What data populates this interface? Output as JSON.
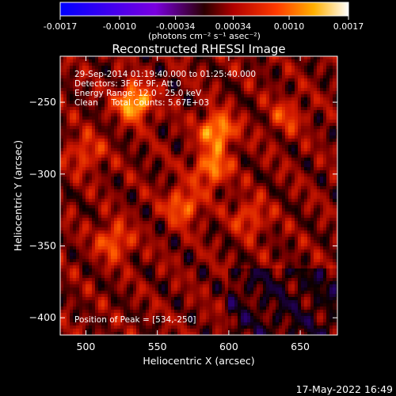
{
  "chart_data": {
    "type": "heatmap",
    "title": "Reconstructed RHESSI Image",
    "xlabel": "Heliocentric X (arcsec)",
    "ylabel": "Heliocentric Y (arcsec)",
    "xlim": [
      482,
      676
    ],
    "ylim": [
      -412,
      -218
    ],
    "xticks": [
      "500",
      "550",
      "600",
      "650"
    ],
    "xtick_values": [
      500,
      550,
      600,
      650
    ],
    "yticks": [
      "-250",
      "-300",
      "-350",
      "-400"
    ],
    "ytick_values": [
      -250,
      -300,
      -350,
      -400
    ],
    "info_lines": [
      "29-Sep-2014 01:19:40.000 to 01:25:40.000",
      "Detectors: 3F 6F 9F, Att 0",
      "Energy Range: 12.0 - 25.0 keV",
      "Clean     Total Counts: 5.67E+03"
    ],
    "peak_label": "Position of Peak = [534,-250]",
    "peak": [
      534,
      -250
    ],
    "hotspots": [
      {
        "x": 534,
        "y": -250,
        "v": 1.0
      },
      {
        "x": 592,
        "y": -270,
        "v": 0.9
      },
      {
        "x": 588,
        "y": -296,
        "v": 0.75
      },
      {
        "x": 568,
        "y": -322,
        "v": 0.65
      },
      {
        "x": 520,
        "y": -347,
        "v": 0.6
      },
      {
        "x": 500,
        "y": -285,
        "v": 0.45
      },
      {
        "x": 615,
        "y": -330,
        "v": 0.45
      },
      {
        "x": 640,
        "y": -260,
        "v": 0.4
      }
    ],
    "colorbar": {
      "min": -0.0017,
      "max": 0.0017,
      "tick_labels": [
        "-0.0017",
        "-0.0010",
        "-0.00034",
        "0.00034",
        "0.0010",
        "0.0017"
      ],
      "tick_values": [
        -0.0017,
        -0.001,
        -0.00034,
        0.00034,
        0.001,
        0.0017
      ],
      "units_label": "(photons cm⁻² s⁻¹ asec⁻²)"
    }
  },
  "timestamp": "17-May-2022 16:49"
}
